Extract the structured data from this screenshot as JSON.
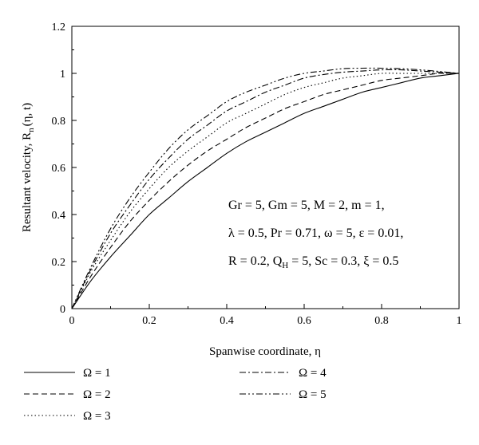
{
  "chart_data": {
    "type": "line",
    "xlabel": "Spanwise coordinate, η",
    "ylabel": "Resultant velocity, R",
    "ylabel_sub": "n",
    "ylabel_args": "(η, t)",
    "xlim": [
      0,
      1
    ],
    "ylim": [
      0,
      1.2
    ],
    "xticks": [
      "0",
      "0.2",
      "0.4",
      "0.6",
      "0.8",
      "1"
    ],
    "yticks": [
      "0",
      "0.2",
      "0.4",
      "0.6",
      "0.8",
      "1",
      "1.2"
    ],
    "grid": false,
    "legend_position": "bottom",
    "annotation_lines": [
      "Gr = 5, Gm = 5, M = 2, m = 1,",
      "λ = 0.5, Pr = 0.71, ω = 5, ε = 0.01,",
      "R = 0.2, Q",
      "H",
      " = 5, Sc = 0.3, ξ = 0.5"
    ],
    "x": [
      0,
      0.05,
      0.1,
      0.15,
      0.2,
      0.25,
      0.3,
      0.35,
      0.4,
      0.45,
      0.5,
      0.55,
      0.6,
      0.65,
      0.7,
      0.75,
      0.8,
      0.85,
      0.9,
      0.95,
      1.0
    ],
    "series": [
      {
        "name": "Ω = 1",
        "dash": "solid",
        "values": [
          0,
          0.12,
          0.22,
          0.31,
          0.4,
          0.47,
          0.54,
          0.6,
          0.66,
          0.71,
          0.75,
          0.79,
          0.83,
          0.86,
          0.89,
          0.92,
          0.94,
          0.96,
          0.98,
          0.99,
          1.0
        ]
      },
      {
        "name": "Ω = 2",
        "dash": "dashed",
        "values": [
          0,
          0.14,
          0.26,
          0.37,
          0.46,
          0.54,
          0.61,
          0.67,
          0.72,
          0.77,
          0.81,
          0.85,
          0.88,
          0.91,
          0.93,
          0.95,
          0.97,
          0.98,
          0.99,
          1.0,
          1.0
        ]
      },
      {
        "name": "Ω = 3",
        "dash": "dotted",
        "values": [
          0,
          0.16,
          0.29,
          0.41,
          0.51,
          0.6,
          0.67,
          0.73,
          0.79,
          0.83,
          0.87,
          0.91,
          0.94,
          0.96,
          0.98,
          0.99,
          1.0,
          1.0,
          1.0,
          1.0,
          1.0
        ]
      },
      {
        "name": "Ω = 4",
        "dash": "dashdot",
        "values": [
          0,
          0.17,
          0.32,
          0.44,
          0.55,
          0.64,
          0.72,
          0.78,
          0.84,
          0.88,
          0.92,
          0.95,
          0.98,
          0.995,
          1.005,
          1.01,
          1.015,
          1.015,
          1.01,
          1.005,
          1.0
        ]
      },
      {
        "name": "Ω = 5",
        "dash": "dashdotdot",
        "values": [
          0,
          0.18,
          0.34,
          0.47,
          0.58,
          0.68,
          0.76,
          0.82,
          0.88,
          0.92,
          0.95,
          0.98,
          1.0,
          1.01,
          1.02,
          1.022,
          1.022,
          1.02,
          1.015,
          1.008,
          1.0
        ]
      }
    ]
  }
}
